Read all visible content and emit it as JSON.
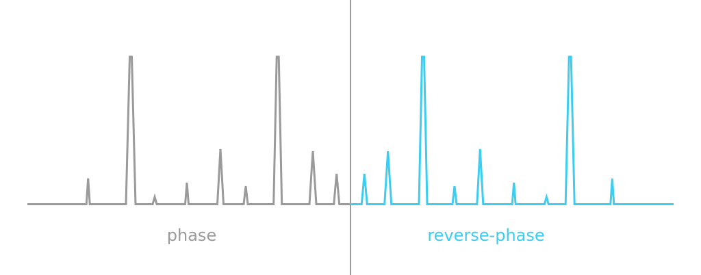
{
  "panels": [
    {
      "label": "phase",
      "color": "#9a9a9a"
    },
    {
      "label": "reverse-phase",
      "color": "#3ccdf0"
    }
  ],
  "divider_color": "#7a7a7a"
}
